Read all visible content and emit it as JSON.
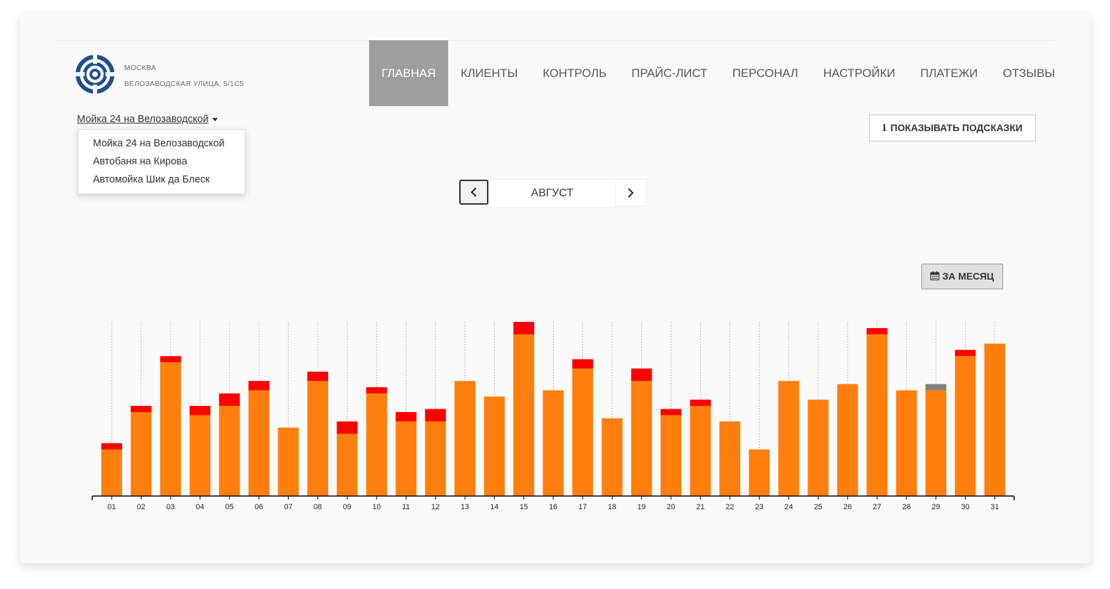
{
  "header": {
    "city": "МОСКВА",
    "address": "ВЕЛОЗАВОДСКАЯ УЛИЦА, 5/1С5",
    "logo_icon": "concentric-circle-logo",
    "brand_color": "#1e4f8c"
  },
  "nav": {
    "items": [
      {
        "label": "ГЛАВНАЯ",
        "active": true
      },
      {
        "label": "КЛИЕНТЫ"
      },
      {
        "label": "КОНТРОЛЬ"
      },
      {
        "label": "ПРАЙС-ЛИСТ"
      },
      {
        "label": "ПЕРСОНАЛ"
      },
      {
        "label": "НАСТРОЙКИ"
      },
      {
        "label": "ПЛАТЕЖИ"
      },
      {
        "label": "ОТЗЫВЫ"
      }
    ],
    "active_color": "#9e9e9e"
  },
  "location_select": {
    "selected": "Мойка 24 на Велозаводской",
    "options": [
      "Мойка 24 на Велозаводской",
      "Автобаня на Кирова",
      "Автомойка Шик да Блеск"
    ]
  },
  "hints_button": {
    "label": "ПОКАЗЫВАТЬ ПОДСКАЗКИ",
    "icon": "info-icon"
  },
  "month_nav": {
    "label": "АВГУСТ",
    "prev_icon": "chevron-left-icon",
    "next_icon": "chevron-right-icon"
  },
  "month_button": {
    "label": "ЗА МЕСЯЦ",
    "icon": "calendar-icon"
  },
  "chart_data": {
    "type": "bar",
    "stacked": true,
    "categories": [
      "01",
      "02",
      "03",
      "04",
      "05",
      "06",
      "07",
      "08",
      "09",
      "10",
      "11",
      "12",
      "13",
      "14",
      "15",
      "16",
      "17",
      "18",
      "19",
      "20",
      "21",
      "22",
      "23",
      "24",
      "25",
      "26",
      "27",
      "28",
      "29",
      "30",
      "31"
    ],
    "series": [
      {
        "color": "#ff7f0e",
        "values": [
          15,
          27,
          43,
          26,
          29,
          34,
          22,
          37,
          20,
          33,
          24,
          24,
          37,
          32,
          52,
          34,
          41,
          25,
          37,
          26,
          29,
          24,
          15,
          37,
          31,
          36,
          52,
          34,
          34,
          45,
          49
        ]
      },
      {
        "color": "#ff0000",
        "values": [
          2,
          2,
          2,
          3,
          4,
          3,
          0,
          3,
          4,
          2,
          3,
          4,
          0,
          0,
          4,
          0,
          3,
          0,
          4,
          2,
          2,
          0,
          0,
          0,
          0,
          0,
          2,
          0,
          0,
          2,
          0
        ]
      },
      {
        "color": "#808080",
        "values": [
          0,
          0,
          0,
          0,
          0,
          0,
          0,
          0,
          0,
          0,
          0,
          0,
          0,
          0,
          0,
          0,
          0,
          0,
          0,
          0,
          0,
          0,
          0,
          0,
          0,
          0,
          0,
          0,
          2,
          0,
          0
        ]
      }
    ],
    "ylim": [
      0,
      56
    ],
    "grid": "vertical-dashed",
    "title": "",
    "xlabel": "",
    "ylabel": ""
  }
}
